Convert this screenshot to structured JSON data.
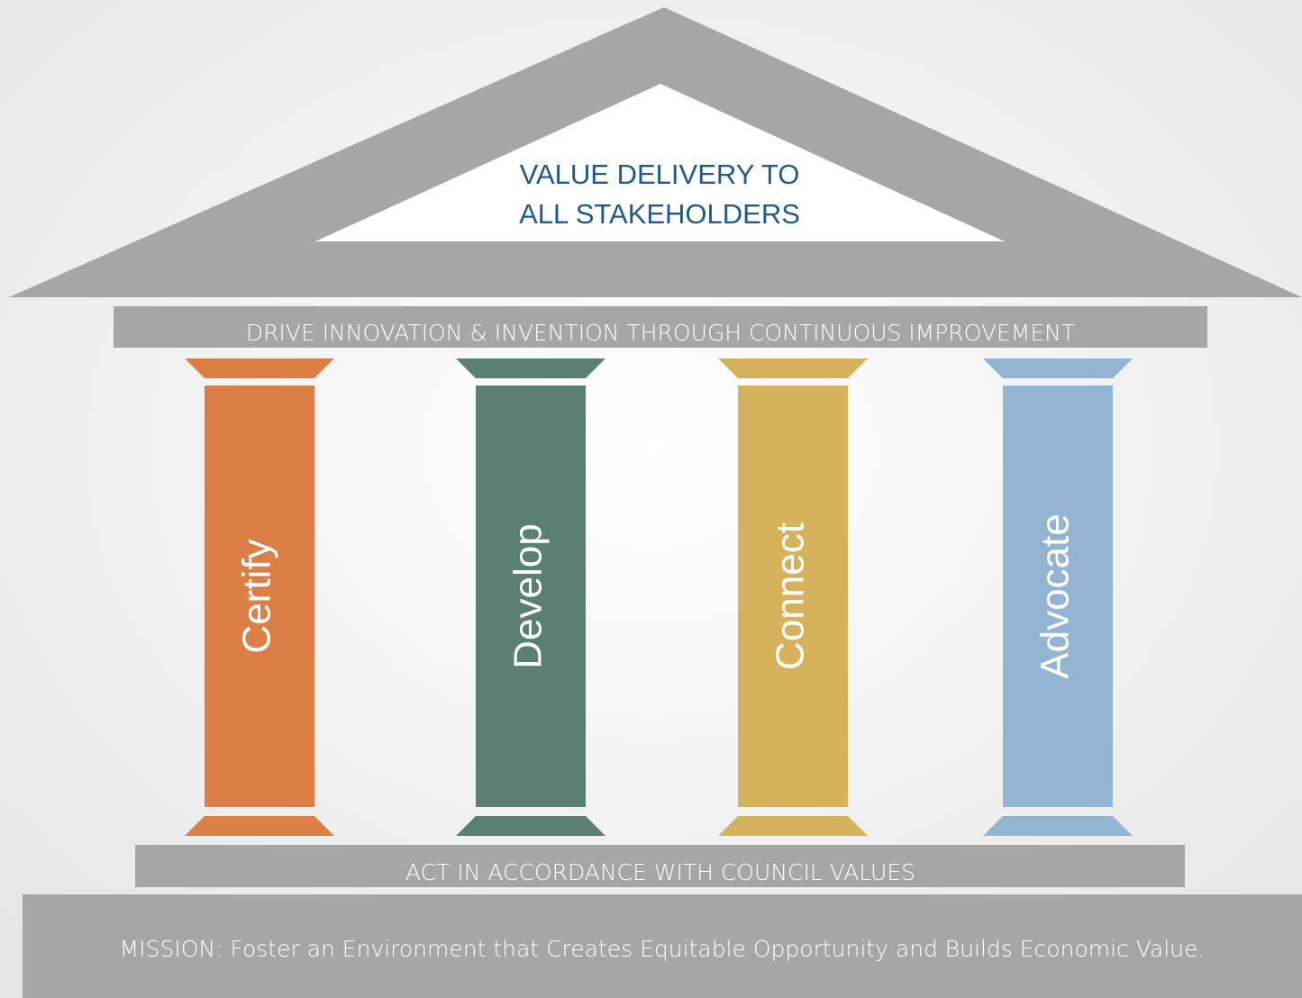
{
  "roof": {
    "lines": [
      "VALUE DELIVERY TO",
      "ALL STAKEHOLDERS"
    ]
  },
  "beam": "DRIVE INNOVATION & INVENTION THROUGH CONTINUOUS IMPROVEMENT",
  "pillars": [
    {
      "label": "Certify",
      "color": "#dc7f47"
    },
    {
      "label": "Develop",
      "color": "#5a8074"
    },
    {
      "label": "Connect",
      "color": "#d7b25d"
    },
    {
      "label": "Advocate",
      "color": "#93b4d2"
    }
  ],
  "base": "ACT IN ACCORDANCE WITH COUNCIL VALUES",
  "mission": "MISSION: Foster an Environment that Creates Equitable Opportunity and Builds Economic Value."
}
